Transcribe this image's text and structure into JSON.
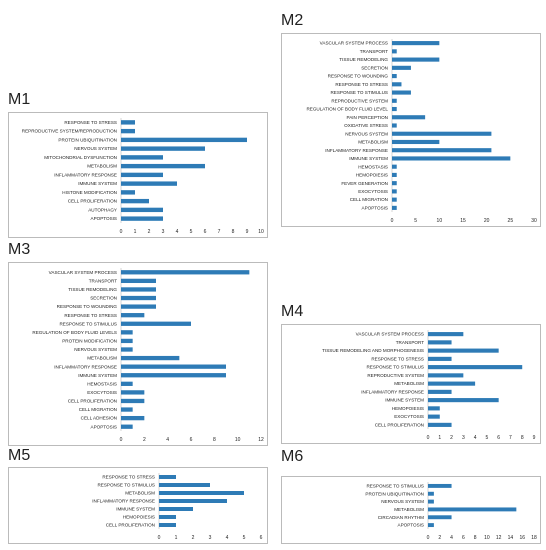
{
  "colors": {
    "bar": "#2e7bb6",
    "axis": "#bbbbbb"
  },
  "chart_data": [
    {
      "panel": "M1",
      "type": "bar",
      "orientation": "horizontal",
      "categories": [
        "RESPONSE TO STRESS",
        "REPRODUCTIVE SYSTEM/REPRODUCTION",
        "PROTEIN UBIQUITINATION",
        "NERVOUS SYSTEM",
        "MITOCHONDRIAL DYSFUNCTION",
        "METABOLISM",
        "INFLAMMATORY RESPONSE",
        "IMMUNE SYSTEM",
        "HISTONE MODIFICATION",
        "CELL PROLIFERATION",
        "AUTOPHAGY",
        "APOPTOSIS"
      ],
      "values": [
        1,
        1,
        9,
        6,
        3,
        6,
        3,
        4,
        1,
        2,
        3,
        3
      ],
      "xlim": [
        0,
        10
      ],
      "ticks": [
        "0",
        "1",
        "2",
        "3",
        "4",
        "5",
        "6",
        "7",
        "8",
        "9",
        "10"
      ]
    },
    {
      "panel": "M2",
      "type": "bar",
      "orientation": "horizontal",
      "categories": [
        "VASCULAR SYSTEM PROCESS",
        "TRANSPORT",
        "TISSUE REMODELING",
        "SECRETION",
        "RESPONSE TO WOUNDING",
        "RESPONSE TO STRESS",
        "RESPONSE TO STIMULUS",
        "REPRODUCTIVE SYSTEM",
        "REGULATION OF BODY FLUID LEVEL",
        "PAIN PERCEPTION",
        "OXIDATIVE STRESS",
        "NERVOUS SYSTEM",
        "METABOLISM",
        "INFLAMMATORY RESPONSE",
        "IMMUNE SYSTEM",
        "HEMOSTASIS",
        "HEMOPOIESIS",
        "FEVER GENERATION",
        "EXOCYTOSIS",
        "CELL MIGRATION",
        "APOPTOSIS"
      ],
      "values": [
        10,
        1,
        10,
        4,
        1,
        2,
        4,
        1,
        1,
        7,
        1,
        21,
        10,
        21,
        25,
        1,
        1,
        1,
        1,
        1,
        1
      ],
      "xlim": [
        0,
        30
      ],
      "ticks": [
        "0",
        "5",
        "10",
        "15",
        "20",
        "25",
        "30"
      ]
    },
    {
      "panel": "M3",
      "type": "bar",
      "orientation": "horizontal",
      "categories": [
        "VASCULAR SYSTEM PROCESS",
        "TRANSPORT",
        "TISSUE REMODELING",
        "SECRETION",
        "RESPONSE TO WOUNDING",
        "RESPONSE TO STRESS",
        "RESPONSE TO STIMULUS",
        "REGULATION OF BODY FLUID LEVELS",
        "PROTEIN MODIFICATION",
        "NERVOUS SYSTEM",
        "METABOLISM",
        "INFLAMMATORY RESPONSE",
        "IMMUNE SYSTEM",
        "HEMOSTASIS",
        "EXOCYTOSIS",
        "CELL PROLIFERATION",
        "CELL MIGRATION",
        "CELL ADHESION",
        "APOPTOSIS"
      ],
      "values": [
        11,
        3,
        3,
        3,
        3,
        2,
        6,
        1,
        1,
        1,
        5,
        9,
        9,
        1,
        2,
        2,
        1,
        2,
        1
      ],
      "xlim": [
        0,
        12
      ],
      "ticks": [
        "0",
        "2",
        "4",
        "6",
        "8",
        "10",
        "12"
      ]
    },
    {
      "panel": "M4",
      "type": "bar",
      "orientation": "horizontal",
      "categories": [
        "VASCULAR SYSTEM PROCESS",
        "TRANSPORT",
        "TISSUE REMODELING AND MORPHOGENESIS",
        "RESPONSE TO STRESS",
        "RESPONSE TO STIMULUS",
        "REPRODUCTIVE SYSTEM",
        "METABOLISM",
        "INFLAMMATORY RESPONSE",
        "IMMUNE SYSTEM",
        "HEMOPOIESIS",
        "EXOCYTOSIS",
        "CELL PROLIFERATION"
      ],
      "values": [
        3,
        2,
        6,
        2,
        8,
        3,
        4,
        2,
        6,
        1,
        1,
        2
      ],
      "xlim": [
        0,
        9
      ],
      "ticks": [
        "0",
        "1",
        "2",
        "3",
        "4",
        "5",
        "6",
        "7",
        "8",
        "9"
      ]
    },
    {
      "panel": "M5",
      "type": "bar",
      "orientation": "horizontal",
      "categories": [
        "RESPONSE TO STRESS",
        "RESPONSE TO STIMULUS",
        "METABOLISM",
        "INFLAMMATORY RESPONSE",
        "IMMUNE SYSTEM",
        "HEMOPOIESIS",
        "CELL PROLIFERATION"
      ],
      "values": [
        1,
        3,
        5,
        4,
        2,
        1,
        1
      ],
      "xlim": [
        0,
        6
      ],
      "ticks": [
        "0",
        "1",
        "2",
        "3",
        "4",
        "5",
        "6"
      ]
    },
    {
      "panel": "M6",
      "type": "bar",
      "orientation": "horizontal",
      "categories": [
        "RESPONSE TO STIMULUS",
        "PROTEIN UBIQUITINATION",
        "NERVOUS SYSTEM",
        "METABOLISM",
        "CIRCADIAN RHYTHM",
        "APOPTOSIS"
      ],
      "values": [
        4,
        1,
        1,
        15,
        4,
        1
      ],
      "xlim": [
        0,
        18
      ],
      "ticks": [
        "0",
        "2",
        "4",
        "6",
        "8",
        "10",
        "12",
        "14",
        "16",
        "18"
      ]
    }
  ]
}
